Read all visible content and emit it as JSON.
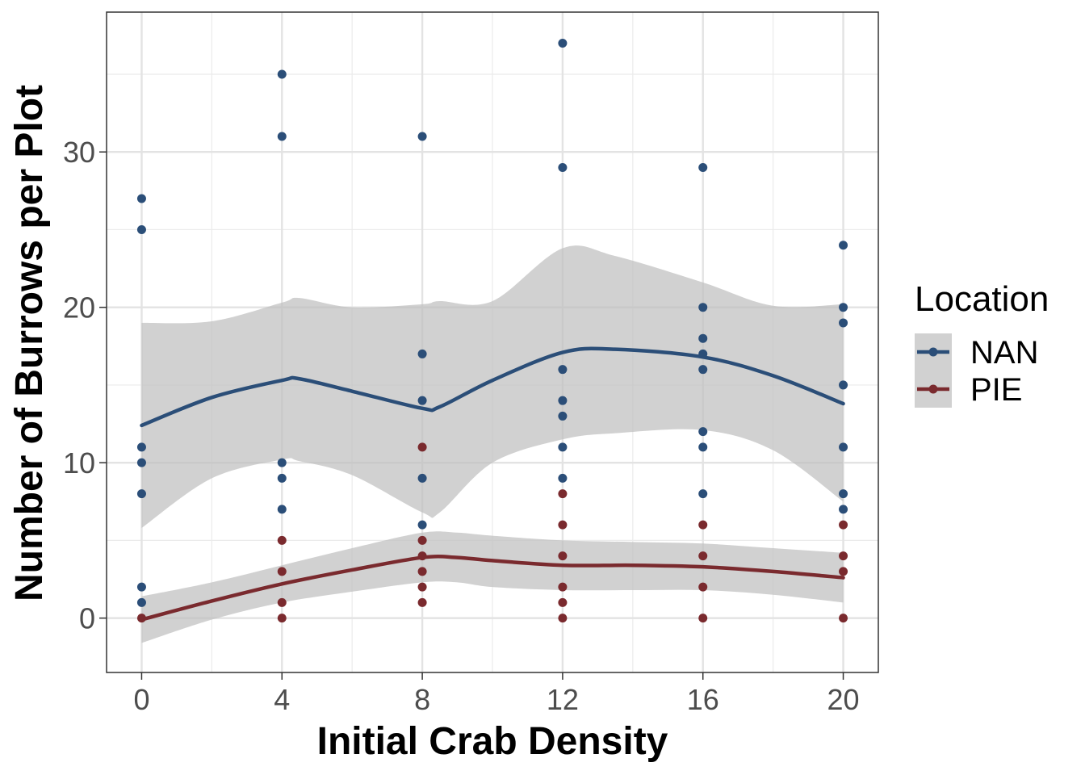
{
  "chart_data": {
    "type": "scatter",
    "title": "",
    "xlabel": "Initial Crab Density",
    "ylabel": "Number of Burrows per Plot",
    "xlim": [
      -1,
      21
    ],
    "ylim": [
      -3.5,
      39
    ],
    "x_ticks": [
      0,
      4,
      8,
      12,
      16,
      20
    ],
    "y_ticks": [
      0,
      10,
      20,
      30
    ],
    "grid": true,
    "legend": {
      "title": "Location",
      "position": "right"
    },
    "colors": {
      "NAN": "#2b4e78",
      "PIE": "#7a2a2e",
      "band": "#bfbfbf"
    },
    "series": [
      {
        "name": "NAN",
        "color": "#2b4e78",
        "points": [
          [
            0,
            27
          ],
          [
            0,
            25
          ],
          [
            0,
            11
          ],
          [
            0,
            10
          ],
          [
            0,
            8
          ],
          [
            0,
            2
          ],
          [
            0,
            1
          ],
          [
            4,
            35
          ],
          [
            4,
            31
          ],
          [
            4,
            10
          ],
          [
            4,
            9
          ],
          [
            4,
            7
          ],
          [
            8,
            31
          ],
          [
            8,
            17
          ],
          [
            8,
            14
          ],
          [
            8,
            9
          ],
          [
            8,
            6
          ],
          [
            12,
            37
          ],
          [
            12,
            29
          ],
          [
            12,
            16
          ],
          [
            12,
            14
          ],
          [
            12,
            13
          ],
          [
            12,
            11
          ],
          [
            12,
            9
          ],
          [
            16,
            29
          ],
          [
            16,
            20
          ],
          [
            16,
            18
          ],
          [
            16,
            17
          ],
          [
            16,
            16
          ],
          [
            16,
            12
          ],
          [
            16,
            11
          ],
          [
            16,
            8
          ],
          [
            20,
            24
          ],
          [
            20,
            20
          ],
          [
            20,
            19
          ],
          [
            20,
            15
          ],
          [
            20,
            11
          ],
          [
            20,
            8
          ],
          [
            20,
            7
          ]
        ],
        "smooth": {
          "x": [
            0,
            2,
            4,
            4.5,
            6,
            8,
            8.5,
            10,
            12,
            13.5,
            16,
            18,
            20
          ],
          "y": [
            12.4,
            14.2,
            15.3,
            15.4,
            14.6,
            13.5,
            13.6,
            15.3,
            17.1,
            17.3,
            16.8,
            15.6,
            13.8
          ],
          "lower": [
            5.8,
            9.0,
            10.2,
            10.1,
            9.2,
            6.8,
            6.8,
            10.0,
            11.5,
            11.9,
            12.1,
            10.8,
            7.5
          ],
          "upper": [
            19.0,
            19.1,
            20.3,
            20.6,
            20.0,
            20.2,
            20.4,
            20.4,
            23.8,
            23.3,
            21.6,
            20.1,
            20.2
          ]
        }
      },
      {
        "name": "PIE",
        "color": "#7a2a2e",
        "points": [
          [
            0,
            0
          ],
          [
            4,
            5
          ],
          [
            4,
            3
          ],
          [
            4,
            1
          ],
          [
            4,
            0
          ],
          [
            8,
            11
          ],
          [
            8,
            5
          ],
          [
            8,
            4
          ],
          [
            8,
            3
          ],
          [
            8,
            2
          ],
          [
            8,
            1
          ],
          [
            12,
            8
          ],
          [
            12,
            6
          ],
          [
            12,
            4
          ],
          [
            12,
            2
          ],
          [
            12,
            1
          ],
          [
            12,
            0
          ],
          [
            16,
            6
          ],
          [
            16,
            4
          ],
          [
            16,
            2
          ],
          [
            16,
            0
          ],
          [
            20,
            6
          ],
          [
            20,
            4
          ],
          [
            20,
            3
          ],
          [
            20,
            0
          ]
        ],
        "smooth": {
          "x": [
            0,
            2,
            4,
            6,
            8,
            9,
            10,
            12,
            14,
            16,
            18,
            20
          ],
          "y": [
            -0.1,
            1.1,
            2.2,
            3.1,
            3.9,
            3.9,
            3.7,
            3.4,
            3.4,
            3.3,
            3.0,
            2.6
          ],
          "lower": [
            -1.6,
            -0.1,
            1.0,
            1.7,
            2.3,
            2.3,
            2.0,
            1.8,
            1.8,
            1.8,
            1.5,
            1.0
          ],
          "upper": [
            1.4,
            2.3,
            3.4,
            4.5,
            5.5,
            5.5,
            5.3,
            5.0,
            4.9,
            4.8,
            4.5,
            4.2
          ]
        }
      }
    ]
  }
}
